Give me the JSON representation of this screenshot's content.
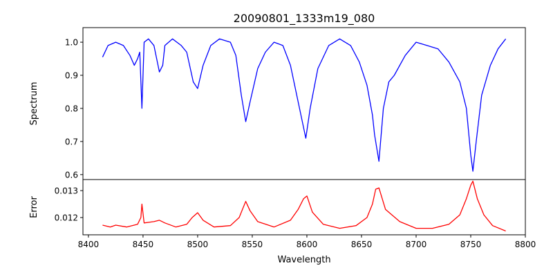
{
  "chart_data": {
    "type": "line",
    "title": "20090801_1333m19_080",
    "xlabel": "Wavelength",
    "xlim": [
      8395,
      8800
    ],
    "xticks": [
      8400,
      8450,
      8500,
      8550,
      8600,
      8650,
      8700,
      8750,
      8800
    ],
    "panels": [
      {
        "name": "spectrum",
        "ylabel": "Spectrum",
        "ylim": [
          0.585,
          1.044
        ],
        "yticks": [
          0.6,
          0.7,
          0.8,
          0.9,
          1.0
        ],
        "ytick_labels": [
          "0.6",
          "0.7",
          "0.8",
          "0.9",
          "1.0"
        ],
        "color": "#0000ff",
        "series": {
          "x": [
            8413,
            8418,
            8425,
            8432,
            8438,
            8442,
            8445,
            8447,
            8449,
            8451,
            8455,
            8460,
            8465,
            8468,
            8470,
            8477,
            8485,
            8490,
            8496,
            8500,
            8505,
            8512,
            8520,
            8530,
            8535,
            8540,
            8544,
            8548,
            8555,
            8562,
            8570,
            8578,
            8585,
            8592,
            8599,
            8603,
            8610,
            8620,
            8630,
            8640,
            8648,
            8655,
            8660,
            8662,
            8666,
            8670,
            8675,
            8680,
            8690,
            8700,
            8710,
            8720,
            8730,
            8740,
            8746,
            8750,
            8752,
            8755,
            8760,
            8768,
            8775,
            8782
          ],
          "y": [
            0.955,
            0.99,
            1.0,
            0.99,
            0.96,
            0.93,
            0.95,
            0.97,
            0.8,
            1.0,
            1.01,
            0.99,
            0.91,
            0.93,
            0.99,
            1.01,
            0.99,
            0.97,
            0.88,
            0.86,
            0.93,
            0.99,
            1.01,
            1.0,
            0.96,
            0.84,
            0.76,
            0.82,
            0.92,
            0.97,
            1.0,
            0.99,
            0.93,
            0.82,
            0.71,
            0.8,
            0.92,
            0.99,
            1.01,
            0.99,
            0.94,
            0.87,
            0.78,
            0.72,
            0.64,
            0.8,
            0.88,
            0.9,
            0.96,
            1.0,
            0.99,
            0.98,
            0.94,
            0.88,
            0.8,
            0.66,
            0.61,
            0.7,
            0.84,
            0.93,
            0.98,
            1.01
          ]
        }
      },
      {
        "name": "error",
        "ylabel": "Error",
        "ylim": [
          0.01136,
          0.01341
        ],
        "yticks": [
          0.012,
          0.013
        ],
        "ytick_labels": [
          "0.012",
          "0.013"
        ],
        "color": "#ff0000",
        "series": {
          "x": [
            8413,
            8420,
            8425,
            8435,
            8445,
            8448,
            8449,
            8451,
            8460,
            8465,
            8470,
            8480,
            8490,
            8495,
            8500,
            8505,
            8515,
            8530,
            8538,
            8542,
            8544,
            8548,
            8555,
            8570,
            8585,
            8592,
            8597,
            8600,
            8605,
            8615,
            8630,
            8645,
            8655,
            8660,
            8663,
            8666,
            8672,
            8685,
            8700,
            8715,
            8730,
            8740,
            8746,
            8750,
            8752,
            8756,
            8762,
            8770,
            8782
          ],
          "y": [
            0.01172,
            0.01165,
            0.01172,
            0.01165,
            0.01175,
            0.012,
            0.0125,
            0.0118,
            0.01185,
            0.0119,
            0.0118,
            0.01165,
            0.01175,
            0.012,
            0.01218,
            0.0119,
            0.01165,
            0.0117,
            0.012,
            0.0124,
            0.0126,
            0.01225,
            0.01185,
            0.01165,
            0.0119,
            0.0123,
            0.0127,
            0.0128,
            0.0122,
            0.01175,
            0.0116,
            0.0117,
            0.012,
            0.0125,
            0.01305,
            0.0131,
            0.0123,
            0.01185,
            0.0116,
            0.0116,
            0.01175,
            0.0121,
            0.0127,
            0.0132,
            0.01335,
            0.0127,
            0.0121,
            0.0117,
            0.0115
          ]
        }
      }
    ]
  }
}
